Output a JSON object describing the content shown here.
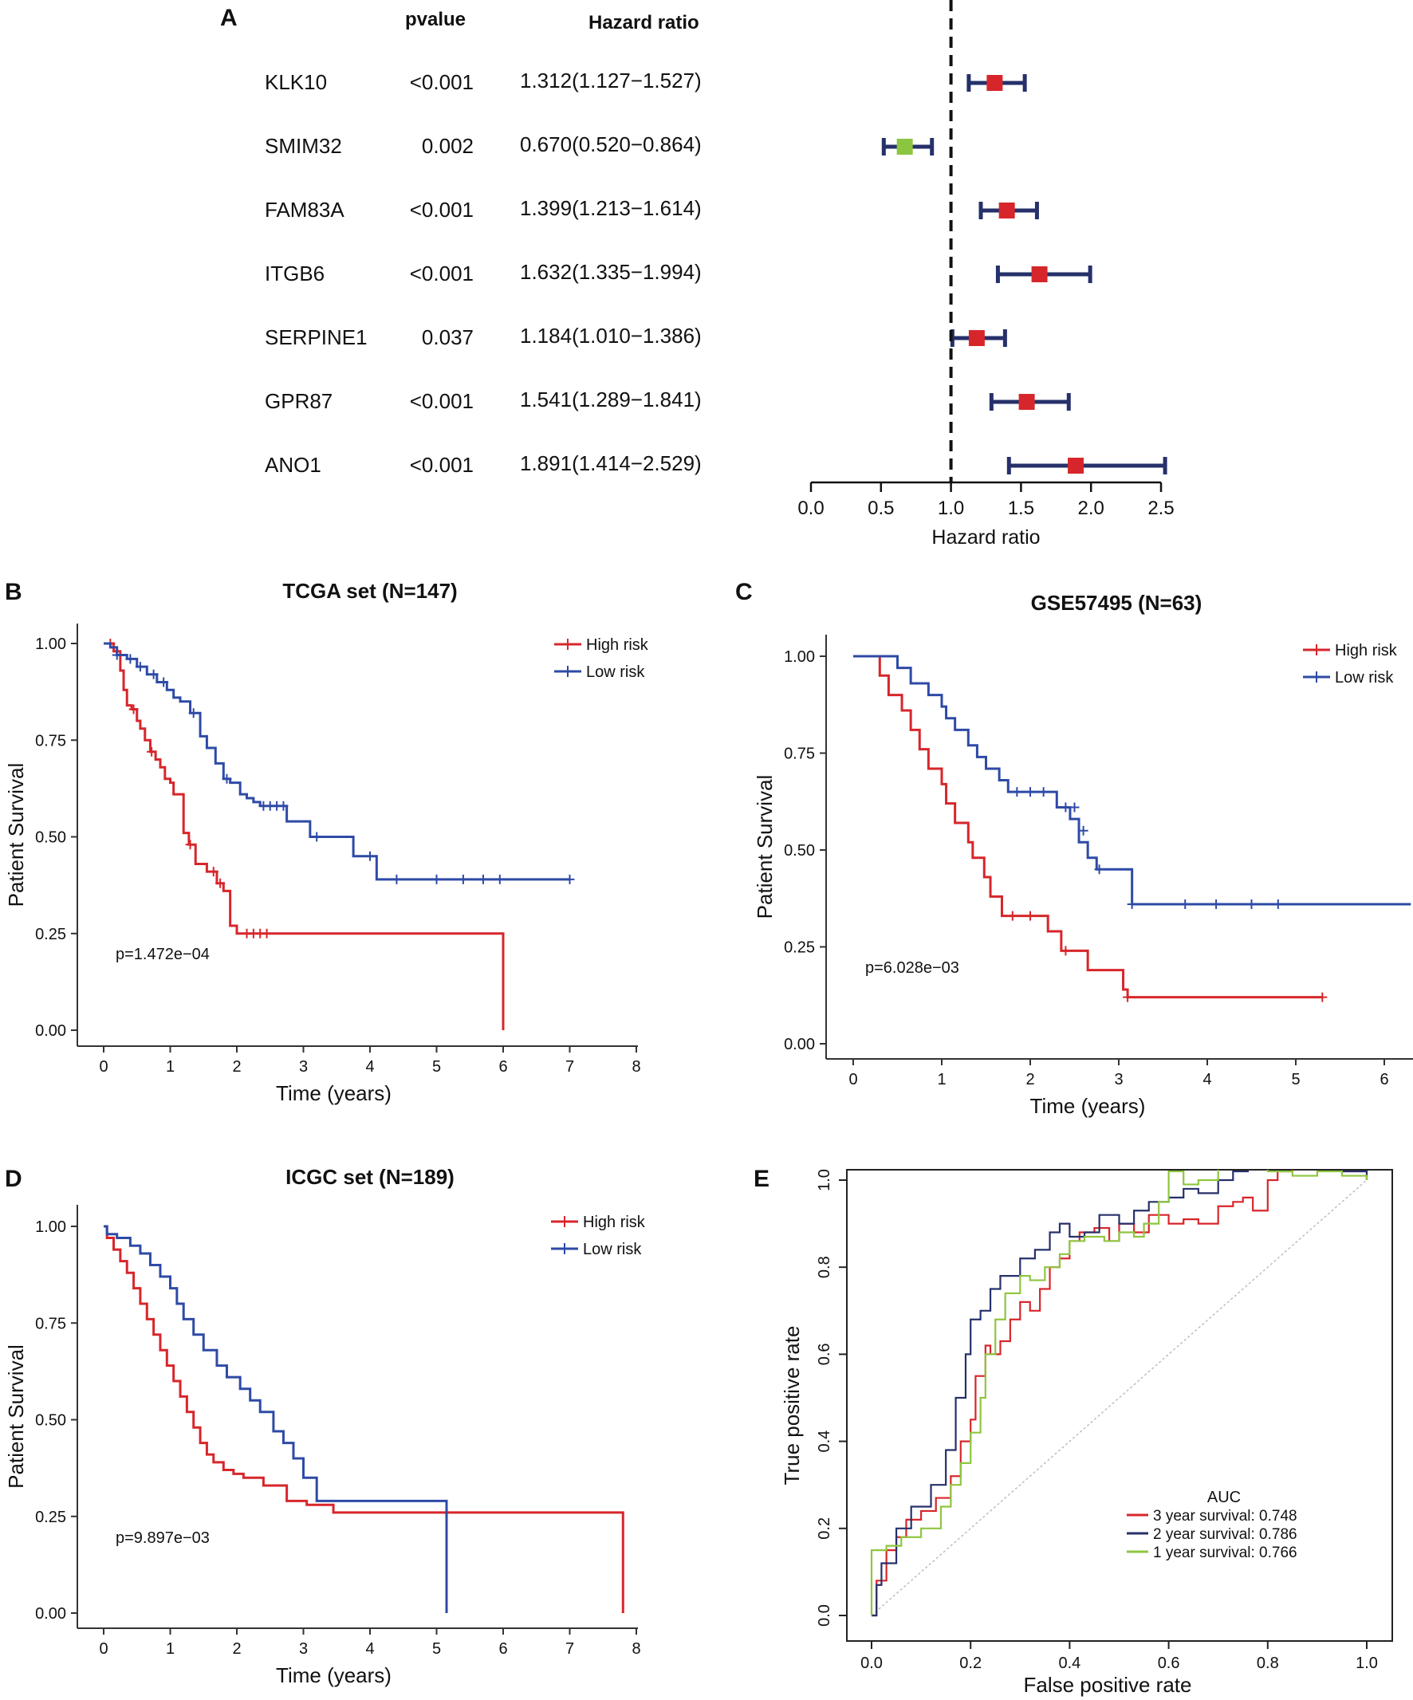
{
  "colors": {
    "red": "#d7262b",
    "blue": "#2e4aa6",
    "green": "#8cc540",
    "navy": "#26306a",
    "roc_green": "#8ec63f",
    "axis": "#333333",
    "diag": "#bdbdbd"
  },
  "chart_data": [
    {
      "id": "A",
      "type": "forest",
      "panel_label": "A",
      "col_headers": {
        "pvalue": "pvalue",
        "hr": "Hazard ratio"
      },
      "xlabel": "Hazard ratio",
      "xlim": [
        0,
        2.5
      ],
      "xticks": [
        0,
        0.5,
        1,
        1.5,
        2,
        2.5
      ],
      "xtick_labels": [
        "0.0",
        "0.5",
        "1.0",
        "1.5",
        "2.0",
        "2.5"
      ],
      "reference": 1.0,
      "rows": [
        {
          "gene": "KLK10",
          "pvalue": "<0.001",
          "hr_text": "1.312(1.127−1.527)",
          "hr": 1.312,
          "lo": 1.127,
          "hi": 1.527,
          "direction": "risk"
        },
        {
          "gene": "SMIM32",
          "pvalue": "0.002",
          "hr_text": "0.670(0.520−0.864)",
          "hr": 0.67,
          "lo": 0.52,
          "hi": 0.864,
          "direction": "protective"
        },
        {
          "gene": "FAM83A",
          "pvalue": "<0.001",
          "hr_text": "1.399(1.213−1.614)",
          "hr": 1.399,
          "lo": 1.213,
          "hi": 1.614,
          "direction": "risk"
        },
        {
          "gene": "ITGB6",
          "pvalue": "<0.001",
          "hr_text": "1.632(1.335−1.994)",
          "hr": 1.632,
          "lo": 1.335,
          "hi": 1.994,
          "direction": "risk"
        },
        {
          "gene": "SERPINE1",
          "pvalue": "0.037",
          "hr_text": "1.184(1.010−1.386)",
          "hr": 1.184,
          "lo": 1.01,
          "hi": 1.386,
          "direction": "risk"
        },
        {
          "gene": "GPR87",
          "pvalue": "<0.001",
          "hr_text": "1.541(1.289−1.841)",
          "hr": 1.541,
          "lo": 1.289,
          "hi": 1.841,
          "direction": "risk"
        },
        {
          "gene": "ANO1",
          "pvalue": "<0.001",
          "hr_text": "1.891(1.414−2.529)",
          "hr": 1.891,
          "lo": 1.414,
          "hi": 2.529,
          "direction": "risk"
        }
      ]
    },
    {
      "id": "B",
      "type": "line",
      "subtype": "kaplan-meier",
      "panel_label": "B",
      "title": "TCGA set (N=147)",
      "xlabel": "Time (years)",
      "ylabel": "Patient Survival",
      "xlim": [
        0,
        8
      ],
      "ylim": [
        0,
        1
      ],
      "xticks": [
        0,
        1,
        2,
        3,
        4,
        5,
        6,
        7,
        8
      ],
      "xtick_labels": [
        "0",
        "1",
        "2",
        "3",
        "4",
        "5",
        "6",
        "7",
        "8"
      ],
      "yticks": [
        0,
        0.25,
        0.5,
        0.75,
        1
      ],
      "ytick_labels": [
        "0.00",
        "0.25",
        "0.50",
        "0.75",
        "1.00"
      ],
      "pvalue_text": "p=1.472e−04",
      "legend_position": "top-right",
      "series": [
        {
          "name": "High risk",
          "color_key": "red",
          "x": [
            0,
            0.15,
            0.25,
            0.3,
            0.35,
            0.42,
            0.5,
            0.55,
            0.62,
            0.7,
            0.78,
            0.85,
            0.92,
            1.0,
            1.05,
            1.2,
            1.28,
            1.38,
            1.55,
            1.7,
            1.8,
            1.9,
            2.0,
            6.0,
            6.0
          ],
          "y": [
            1.0,
            0.98,
            0.93,
            0.88,
            0.84,
            0.83,
            0.8,
            0.78,
            0.75,
            0.72,
            0.7,
            0.68,
            0.65,
            0.64,
            0.61,
            0.51,
            0.48,
            0.43,
            0.41,
            0.38,
            0.36,
            0.27,
            0.25,
            0.25,
            0.0
          ],
          "censor_x": [
            0.1,
            0.45,
            0.72,
            1.3,
            1.65,
            1.75,
            2.15,
            2.25,
            2.35,
            2.45
          ],
          "censor_y": [
            1.0,
            0.83,
            0.72,
            0.48,
            0.41,
            0.38,
            0.25,
            0.25,
            0.25,
            0.25
          ]
        },
        {
          "name": "Low risk",
          "color_key": "blue",
          "x": [
            0,
            0.1,
            0.2,
            0.35,
            0.5,
            0.65,
            0.8,
            0.95,
            1.05,
            1.15,
            1.3,
            1.45,
            1.55,
            1.68,
            1.8,
            1.9,
            2.05,
            2.15,
            2.25,
            2.35,
            2.75,
            3.1,
            3.5,
            3.75,
            4.1,
            7.0
          ],
          "y": [
            1.0,
            0.99,
            0.97,
            0.96,
            0.94,
            0.92,
            0.9,
            0.88,
            0.86,
            0.85,
            0.82,
            0.76,
            0.73,
            0.69,
            0.65,
            0.64,
            0.61,
            0.6,
            0.59,
            0.58,
            0.54,
            0.5,
            0.5,
            0.45,
            0.39,
            0.39
          ],
          "censor_x": [
            0.2,
            0.4,
            0.55,
            0.75,
            0.9,
            1.35,
            1.85,
            2.4,
            2.5,
            2.6,
            2.7,
            3.2,
            4.0,
            4.4,
            5.0,
            5.4,
            5.7,
            5.95,
            7.0
          ],
          "censor_y": [
            0.97,
            0.96,
            0.94,
            0.92,
            0.9,
            0.82,
            0.65,
            0.58,
            0.58,
            0.58,
            0.58,
            0.5,
            0.45,
            0.39,
            0.39,
            0.39,
            0.39,
            0.39,
            0.39
          ]
        }
      ]
    },
    {
      "id": "C",
      "type": "line",
      "subtype": "kaplan-meier",
      "panel_label": "C",
      "title": "GSE57495 (N=63)",
      "xlabel": "Time (years)",
      "ylabel": "Patient Survival",
      "xlim": [
        0,
        6.3
      ],
      "ylim": [
        0,
        1
      ],
      "xticks": [
        0,
        1,
        2,
        3,
        4,
        5,
        6
      ],
      "xtick_labels": [
        "0",
        "1",
        "2",
        "3",
        "4",
        "5",
        "6"
      ],
      "yticks": [
        0,
        0.25,
        0.5,
        0.75,
        1
      ],
      "ytick_labels": [
        "0.00",
        "0.25",
        "0.50",
        "0.75",
        "1.00"
      ],
      "pvalue_text": "p=6.028e−03",
      "legend_position": "top-right",
      "series": [
        {
          "name": "High risk",
          "color_key": "red",
          "x": [
            0,
            0.3,
            0.4,
            0.55,
            0.65,
            0.75,
            0.85,
            1.0,
            1.05,
            1.15,
            1.3,
            1.35,
            1.48,
            1.55,
            1.68,
            1.75,
            1.85,
            2.2,
            2.35,
            2.55,
            2.65,
            3.05,
            3.1,
            5.3
          ],
          "y": [
            1.0,
            0.95,
            0.9,
            0.86,
            0.81,
            0.76,
            0.71,
            0.67,
            0.62,
            0.57,
            0.52,
            0.48,
            0.43,
            0.38,
            0.33,
            0.33,
            0.33,
            0.29,
            0.24,
            0.24,
            0.19,
            0.14,
            0.12,
            0.12
          ],
          "censor_x": [
            1.8,
            2.0,
            2.4,
            3.1,
            5.3
          ],
          "censor_y": [
            0.33,
            0.33,
            0.24,
            0.12,
            0.12
          ]
        },
        {
          "name": "Low risk",
          "color_key": "blue",
          "x": [
            0,
            0.5,
            0.65,
            0.85,
            1.0,
            1.05,
            1.15,
            1.3,
            1.4,
            1.5,
            1.65,
            1.75,
            2.3,
            2.45,
            2.55,
            2.65,
            2.75,
            3.15,
            6.3
          ],
          "y": [
            1.0,
            0.97,
            0.93,
            0.9,
            0.87,
            0.84,
            0.81,
            0.77,
            0.74,
            0.71,
            0.68,
            0.65,
            0.61,
            0.58,
            0.52,
            0.48,
            0.45,
            0.36,
            0.36
          ],
          "censor_x": [
            1.85,
            2.0,
            2.15,
            2.4,
            2.5,
            2.6,
            2.78,
            3.15,
            3.75,
            4.1,
            4.5,
            4.8
          ],
          "censor_y": [
            0.65,
            0.65,
            0.65,
            0.61,
            0.61,
            0.55,
            0.45,
            0.36,
            0.36,
            0.36,
            0.36,
            0.36
          ]
        }
      ]
    },
    {
      "id": "D",
      "type": "line",
      "subtype": "kaplan-meier",
      "panel_label": "D",
      "title": "ICGC set (N=189)",
      "xlabel": "Time (years)",
      "ylabel": "Patient Survival",
      "xlim": [
        0,
        8
      ],
      "ylim": [
        0,
        1
      ],
      "xticks": [
        0,
        1,
        2,
        3,
        4,
        5,
        6,
        7,
        8
      ],
      "xtick_labels": [
        "0",
        "1",
        "2",
        "3",
        "4",
        "5",
        "6",
        "7",
        "8"
      ],
      "yticks": [
        0,
        0.25,
        0.5,
        0.75,
        1
      ],
      "ytick_labels": [
        "0.00",
        "0.25",
        "0.50",
        "0.75",
        "1.00"
      ],
      "pvalue_text": "p=9.897e−03",
      "legend_position": "top-right",
      "series": [
        {
          "name": "High risk",
          "color_key": "red",
          "x": [
            0,
            0.05,
            0.15,
            0.25,
            0.35,
            0.45,
            0.55,
            0.65,
            0.75,
            0.85,
            0.95,
            1.05,
            1.15,
            1.25,
            1.35,
            1.45,
            1.55,
            1.65,
            1.8,
            1.95,
            2.1,
            2.4,
            2.75,
            3.05,
            3.45,
            7.8,
            7.8
          ],
          "y": [
            1.0,
            0.97,
            0.94,
            0.91,
            0.88,
            0.84,
            0.8,
            0.76,
            0.72,
            0.68,
            0.64,
            0.6,
            0.56,
            0.52,
            0.48,
            0.44,
            0.41,
            0.39,
            0.37,
            0.36,
            0.35,
            0.33,
            0.29,
            0.28,
            0.26,
            0.26,
            0.0
          ],
          "censor_x": [],
          "censor_y": []
        },
        {
          "name": "Low risk",
          "color_key": "blue",
          "x": [
            0,
            0.05,
            0.2,
            0.4,
            0.55,
            0.7,
            0.85,
            1.0,
            1.1,
            1.2,
            1.35,
            1.5,
            1.7,
            1.85,
            2.05,
            2.2,
            2.35,
            2.55,
            2.7,
            2.85,
            3.0,
            3.2,
            5.15,
            5.15
          ],
          "y": [
            1.0,
            0.98,
            0.97,
            0.95,
            0.93,
            0.9,
            0.87,
            0.84,
            0.8,
            0.76,
            0.72,
            0.68,
            0.64,
            0.61,
            0.58,
            0.55,
            0.52,
            0.47,
            0.44,
            0.4,
            0.35,
            0.29,
            0.29,
            0.0
          ],
          "censor_x": [],
          "censor_y": []
        }
      ]
    },
    {
      "id": "E",
      "type": "line",
      "subtype": "roc",
      "panel_label": "E",
      "xlabel": "False positive rate",
      "ylabel": "True positive rate",
      "xlim": [
        0,
        1
      ],
      "ylim": [
        0,
        1
      ],
      "xticks": [
        0,
        0.2,
        0.4,
        0.6,
        0.8,
        1
      ],
      "xtick_labels": [
        "0.0",
        "0.2",
        "0.4",
        "0.6",
        "0.8",
        "1.0"
      ],
      "yticks": [
        0,
        0.2,
        0.4,
        0.6,
        0.8,
        1
      ],
      "ytick_labels": [
        "0.0",
        "0.2",
        "0.4",
        "0.6",
        "0.8",
        "1.0"
      ],
      "legend_title": "AUC",
      "legend_position": "bottom-right",
      "series": [
        {
          "name": "3 year survival: 0.748",
          "color_key": "red",
          "x": [
            0,
            0.01,
            0.03,
            0.05,
            0.07,
            0.1,
            0.13,
            0.16,
            0.18,
            0.2,
            0.21,
            0.23,
            0.24,
            0.26,
            0.28,
            0.3,
            0.32,
            0.34,
            0.36,
            0.38,
            0.4,
            0.42,
            0.45,
            0.48,
            0.5,
            0.53,
            0.56,
            0.6,
            0.63,
            0.66,
            0.7,
            0.73,
            0.75,
            0.77,
            0.8,
            0.82,
            0.85,
            0.9,
            0.95,
            1.0
          ],
          "y": [
            0,
            0.08,
            0.15,
            0.18,
            0.22,
            0.24,
            0.27,
            0.32,
            0.4,
            0.45,
            0.55,
            0.62,
            0.6,
            0.63,
            0.68,
            0.72,
            0.7,
            0.75,
            0.8,
            0.82,
            0.86,
            0.88,
            0.89,
            0.86,
            0.9,
            0.88,
            0.92,
            0.9,
            0.91,
            0.9,
            0.94,
            0.95,
            0.96,
            0.93,
            1.0,
            1.02,
            1.04,
            1.03,
            1.02,
            1.0
          ]
        },
        {
          "name": "2 year survival: 0.786",
          "color_key": "navy",
          "x": [
            0,
            0.01,
            0.02,
            0.05,
            0.08,
            0.12,
            0.15,
            0.17,
            0.19,
            0.2,
            0.22,
            0.24,
            0.26,
            0.29,
            0.3,
            0.33,
            0.36,
            0.38,
            0.4,
            0.43,
            0.46,
            0.5,
            0.53,
            0.56,
            0.6,
            0.63,
            0.66,
            0.7,
            0.73,
            0.76,
            0.8,
            0.85,
            0.9,
            0.95,
            1.0
          ],
          "y": [
            0,
            0.07,
            0.12,
            0.2,
            0.25,
            0.3,
            0.38,
            0.5,
            0.6,
            0.68,
            0.7,
            0.75,
            0.78,
            0.78,
            0.82,
            0.84,
            0.88,
            0.9,
            0.87,
            0.88,
            0.92,
            0.9,
            0.93,
            0.95,
            0.96,
            0.98,
            0.97,
            1.0,
            1.02,
            1.04,
            1.06,
            1.05,
            1.03,
            1.02,
            1.0
          ]
        },
        {
          "name": "1 year survival: 0.766",
          "color_key": "roc_green",
          "x": [
            0,
            0.0,
            0.03,
            0.06,
            0.1,
            0.14,
            0.16,
            0.18,
            0.2,
            0.22,
            0.23,
            0.25,
            0.27,
            0.3,
            0.32,
            0.35,
            0.38,
            0.4,
            0.43,
            0.47,
            0.5,
            0.53,
            0.55,
            0.58,
            0.6,
            0.63,
            0.66,
            0.7,
            0.75,
            0.8,
            0.85,
            0.9,
            0.95,
            1.0
          ],
          "y": [
            0,
            0.15,
            0.16,
            0.18,
            0.2,
            0.25,
            0.3,
            0.35,
            0.42,
            0.5,
            0.6,
            0.68,
            0.74,
            0.78,
            0.77,
            0.8,
            0.83,
            0.86,
            0.87,
            0.86,
            0.88,
            0.87,
            0.9,
            0.95,
            1.02,
            0.99,
            1.0,
            1.03,
            1.04,
            1.02,
            1.01,
            1.02,
            1.01,
            1.0
          ]
        }
      ]
    }
  ]
}
